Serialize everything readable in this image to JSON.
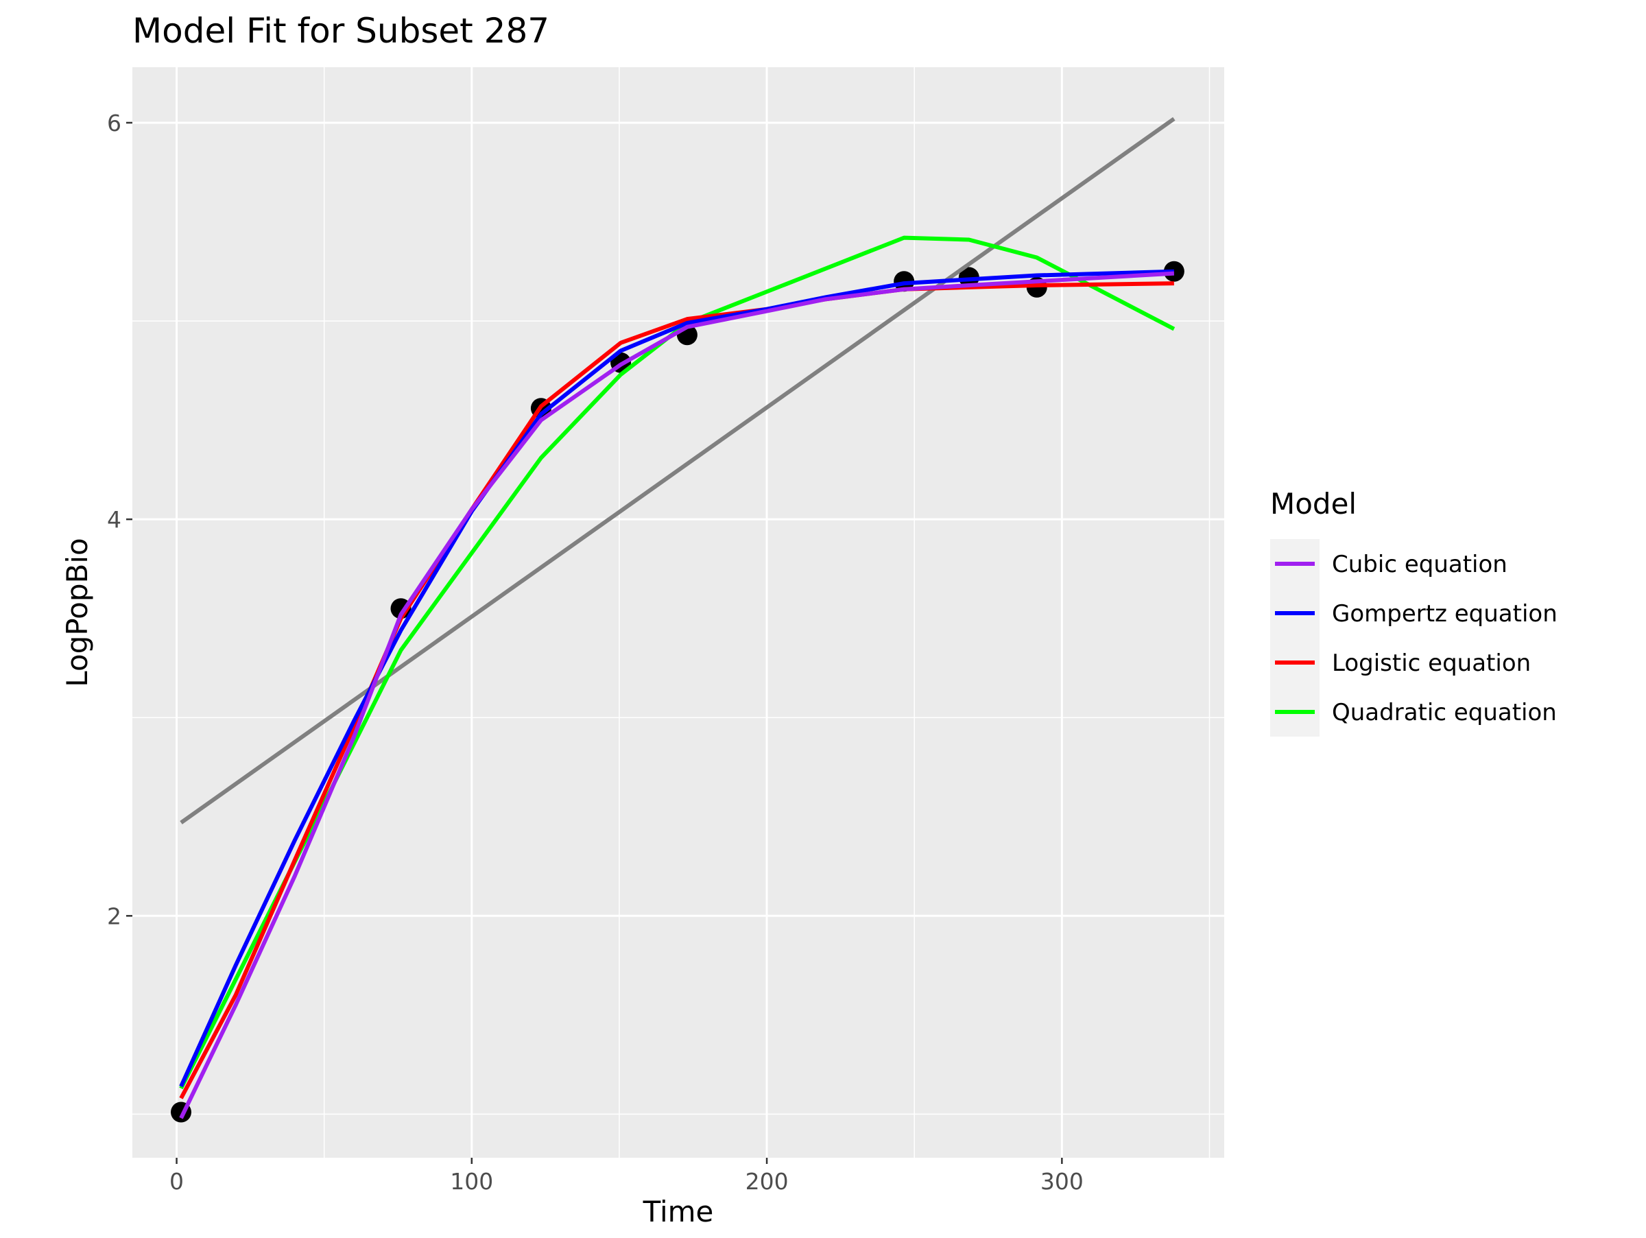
{
  "chart_data": {
    "type": "line",
    "title": "Model Fit for Subset 287",
    "xlabel": "Time",
    "ylabel": "LogPopBio",
    "xlim": [
      -15,
      355
    ],
    "ylim": [
      0.78,
      6.28
    ],
    "xticks": [
      0,
      100,
      200,
      300
    ],
    "yticks": [
      2,
      4,
      6
    ],
    "grid": true,
    "legend": {
      "title": "Model",
      "position": "right",
      "entries": [
        {
          "name": "Cubic equation",
          "color": "#a020f0"
        },
        {
          "name": "Gompertz equation",
          "color": "#0000ff"
        },
        {
          "name": "Logistic equation",
          "color": "#ff0000"
        },
        {
          "name": "Quadratic equation",
          "color": "#00ff00"
        }
      ]
    },
    "points": {
      "x": [
        1.5,
        76,
        123.5,
        150.5,
        173,
        246.5,
        268.5,
        291.5,
        338
      ],
      "y": [
        1.01,
        3.55,
        4.56,
        4.79,
        4.93,
        5.2,
        5.22,
        5.17,
        5.25
      ]
    },
    "linear_fit": {
      "color": "#808080",
      "x": [
        1.5,
        338
      ],
      "y": [
        2.47,
        6.02
      ]
    },
    "series": [
      {
        "name": "Cubic equation",
        "color": "#a020f0",
        "x": [
          1.5,
          20,
          40,
          60,
          76,
          100,
          123.5,
          150.5,
          173,
          200,
          220,
          246.5,
          268.5,
          291.5,
          338
        ],
        "y": [
          0.98,
          1.55,
          2.2,
          2.9,
          3.52,
          4.05,
          4.5,
          4.78,
          4.97,
          5.05,
          5.11,
          5.16,
          5.18,
          5.2,
          5.24
        ]
      },
      {
        "name": "Gompertz equation",
        "color": "#0000ff",
        "x": [
          1.5,
          20,
          40,
          60,
          76,
          100,
          123.5,
          150.5,
          173,
          200,
          220,
          246.5,
          268.5,
          291.5,
          338
        ],
        "y": [
          1.14,
          1.75,
          2.38,
          2.98,
          3.44,
          4.04,
          4.53,
          4.85,
          4.99,
          5.06,
          5.12,
          5.19,
          5.21,
          5.23,
          5.25
        ]
      },
      {
        "name": "Logistic equation",
        "color": "#ff0000",
        "x": [
          1.5,
          20,
          40,
          60,
          76,
          100,
          123.5,
          150.5,
          173,
          200,
          220,
          246.5,
          268.5,
          291.5,
          338
        ],
        "y": [
          1.08,
          1.6,
          2.28,
          2.95,
          3.5,
          4.05,
          4.57,
          4.89,
          5.01,
          5.06,
          5.11,
          5.16,
          5.17,
          5.18,
          5.19
        ]
      },
      {
        "name": "Quadratic equation",
        "color": "#00ff00",
        "x": [
          1.5,
          76,
          123.5,
          150.5,
          173,
          246.5,
          268.5,
          291.5,
          338
        ],
        "y": [
          1.13,
          3.34,
          4.31,
          4.73,
          4.99,
          5.42,
          5.41,
          5.32,
          4.96
        ]
      }
    ]
  }
}
